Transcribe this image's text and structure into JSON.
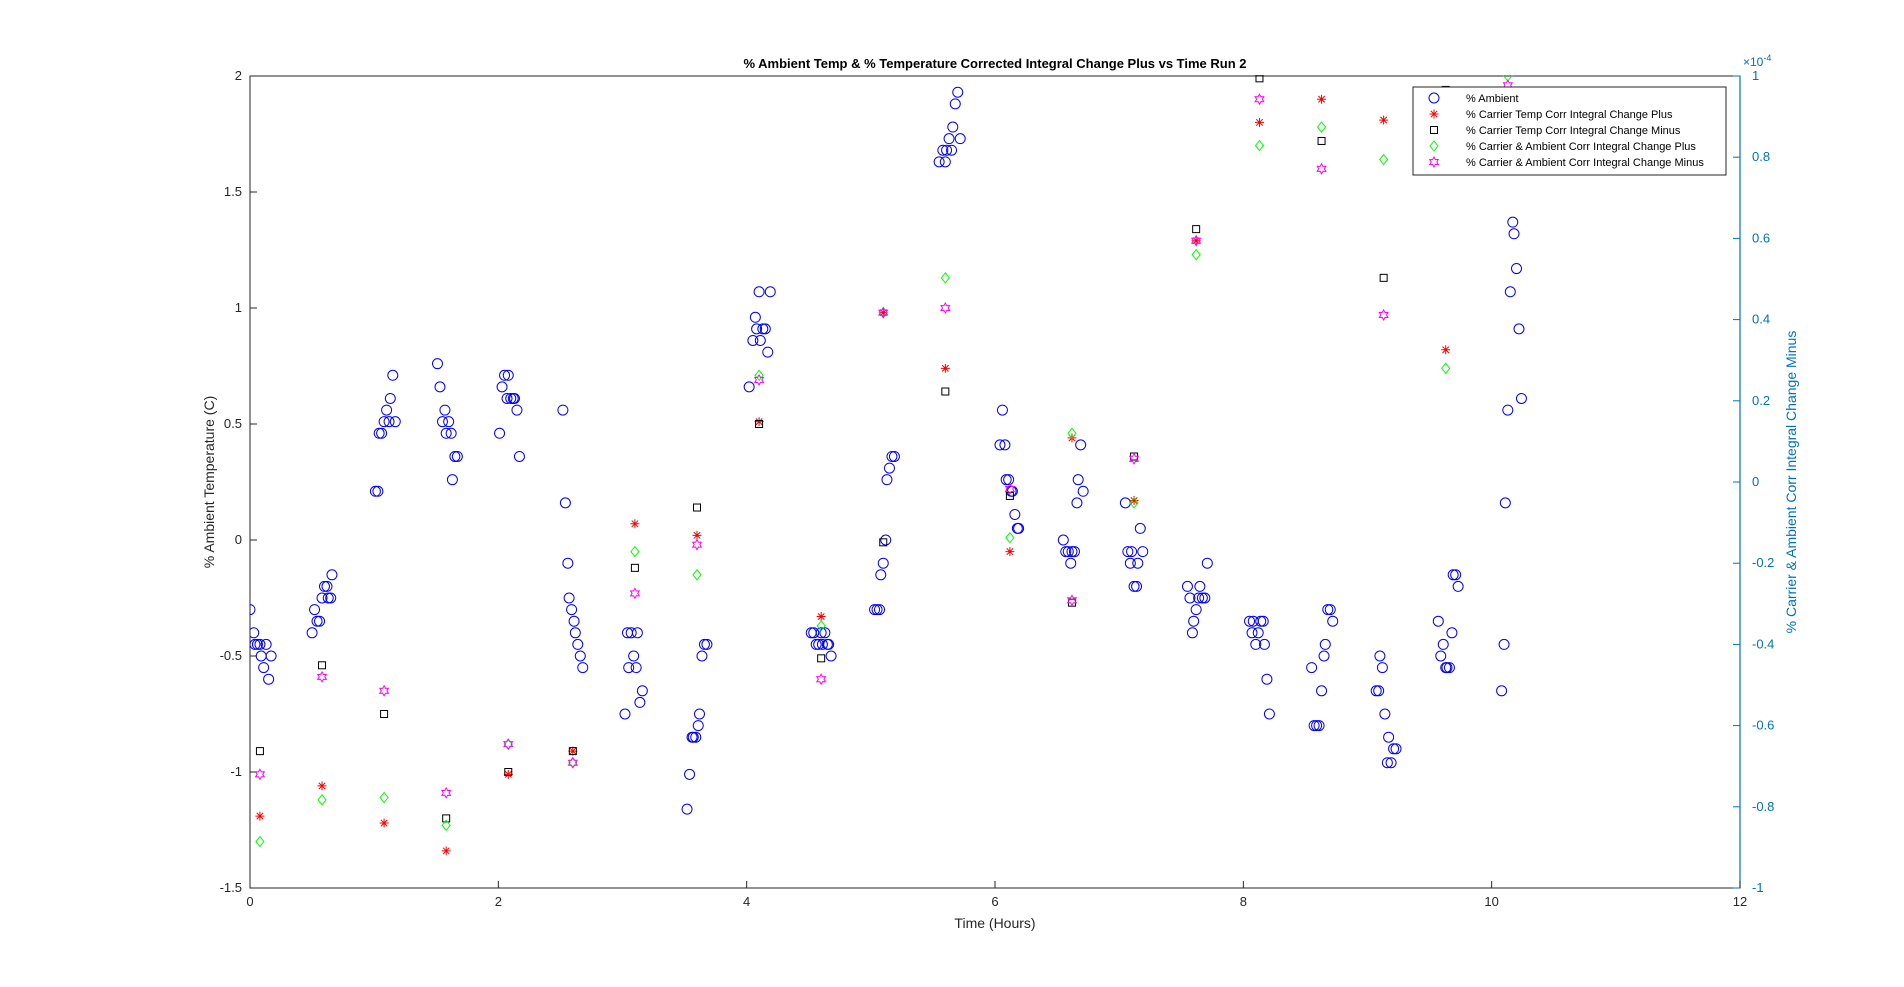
{
  "chart_data": {
    "type": "scatter",
    "title": "% Ambient Temp & % Temperature Corrected Integral Change Plus vs Time Run 2",
    "xlabel": "Time (Hours)",
    "ylabel": "% Ambient Temperature (C)",
    "y2label": "% Carrier & Ambient Corr Integral Change Minus",
    "y2_exponent_label": "×10",
    "y2_exponent_power": "-4",
    "xlim": [
      0,
      12
    ],
    "ylim": [
      -1.5,
      2
    ],
    "y2lim": [
      -1,
      1
    ],
    "xticks": [
      0,
      2,
      4,
      6,
      8,
      10,
      12
    ],
    "yticks": [
      -1.5,
      -1,
      -0.5,
      0,
      0.5,
      1,
      1.5,
      2
    ],
    "y2ticks": [
      -1,
      -0.8,
      -0.6,
      -0.4,
      -0.2,
      0,
      0.2,
      0.4,
      0.6,
      0.8,
      1
    ],
    "xtick_labels": [
      "0",
      "2",
      "4",
      "6",
      "8",
      "10",
      "12"
    ],
    "ytick_labels": [
      "-1.5",
      "-1",
      "-0.5",
      "0",
      "0.5",
      "1",
      "1.5",
      "2"
    ],
    "y2tick_labels": [
      "-1",
      "-0.8",
      "-0.6",
      "-0.4",
      "-0.2",
      "0",
      "0.2",
      "0.4",
      "0.6",
      "0.8",
      "1"
    ],
    "grid": false,
    "legend_position": "top-right",
    "colors": {
      "ambient": "#0000ff",
      "cplus": "#ff0000",
      "cminus": "#000000",
      "aplus": "#00ff00",
      "aminus": "#ff00ff",
      "right_axis": "#0072bd"
    },
    "series": [
      {
        "name": "% Ambient",
        "marker": "circle",
        "color": "#0000ff",
        "axis": "left",
        "points": [
          [
            0.0,
            -0.3
          ],
          [
            0.03,
            -0.4
          ],
          [
            0.04,
            -0.45
          ],
          [
            0.06,
            -0.45
          ],
          [
            0.08,
            -0.45
          ],
          [
            0.09,
            -0.5
          ],
          [
            0.11,
            -0.55
          ],
          [
            0.13,
            -0.45
          ],
          [
            0.15,
            -0.6
          ],
          [
            0.17,
            -0.5
          ],
          [
            0.5,
            -0.4
          ],
          [
            0.52,
            -0.3
          ],
          [
            0.54,
            -0.35
          ],
          [
            0.56,
            -0.35
          ],
          [
            0.58,
            -0.25
          ],
          [
            0.6,
            -0.2
          ],
          [
            0.62,
            -0.2
          ],
          [
            0.63,
            -0.25
          ],
          [
            0.65,
            -0.25
          ],
          [
            0.66,
            -0.15
          ],
          [
            1.01,
            0.21
          ],
          [
            1.03,
            0.21
          ],
          [
            1.04,
            0.46
          ],
          [
            1.06,
            0.46
          ],
          [
            1.08,
            0.51
          ],
          [
            1.1,
            0.56
          ],
          [
            1.12,
            0.51
          ],
          [
            1.13,
            0.61
          ],
          [
            1.15,
            0.71
          ],
          [
            1.17,
            0.51
          ],
          [
            1.51,
            0.76
          ],
          [
            1.53,
            0.66
          ],
          [
            1.55,
            0.51
          ],
          [
            1.57,
            0.56
          ],
          [
            1.58,
            0.46
          ],
          [
            1.6,
            0.51
          ],
          [
            1.62,
            0.46
          ],
          [
            1.63,
            0.26
          ],
          [
            1.65,
            0.36
          ],
          [
            1.67,
            0.36
          ],
          [
            2.01,
            0.46
          ],
          [
            2.03,
            0.66
          ],
          [
            2.05,
            0.71
          ],
          [
            2.07,
            0.61
          ],
          [
            2.08,
            0.71
          ],
          [
            2.1,
            0.61
          ],
          [
            2.12,
            0.61
          ],
          [
            2.13,
            0.61
          ],
          [
            2.15,
            0.56
          ],
          [
            2.17,
            0.36
          ],
          [
            2.52,
            0.56
          ],
          [
            2.54,
            0.16
          ],
          [
            2.56,
            -0.1
          ],
          [
            2.57,
            -0.25
          ],
          [
            2.59,
            -0.3
          ],
          [
            2.61,
            -0.35
          ],
          [
            2.62,
            -0.4
          ],
          [
            2.64,
            -0.45
          ],
          [
            2.66,
            -0.5
          ],
          [
            2.68,
            -0.55
          ],
          [
            3.02,
            -0.75
          ],
          [
            3.04,
            -0.4
          ],
          [
            3.05,
            -0.55
          ],
          [
            3.07,
            -0.4
          ],
          [
            3.09,
            -0.5
          ],
          [
            3.11,
            -0.55
          ],
          [
            3.12,
            -0.4
          ],
          [
            3.14,
            -0.7
          ],
          [
            3.16,
            -0.65
          ],
          [
            3.52,
            -1.16
          ],
          [
            3.54,
            -1.01
          ],
          [
            3.56,
            -0.85
          ],
          [
            3.57,
            -0.85
          ],
          [
            3.59,
            -0.85
          ],
          [
            3.61,
            -0.8
          ],
          [
            3.62,
            -0.75
          ],
          [
            3.64,
            -0.5
          ],
          [
            3.66,
            -0.45
          ],
          [
            3.68,
            -0.45
          ],
          [
            4.02,
            0.66
          ],
          [
            4.05,
            0.86
          ],
          [
            4.07,
            0.96
          ],
          [
            4.08,
            0.91
          ],
          [
            4.1,
            1.07
          ],
          [
            4.11,
            0.86
          ],
          [
            4.13,
            0.91
          ],
          [
            4.15,
            0.91
          ],
          [
            4.17,
            0.81
          ],
          [
            4.19,
            1.07
          ],
          [
            4.52,
            -0.4
          ],
          [
            4.54,
            -0.4
          ],
          [
            4.56,
            -0.45
          ],
          [
            4.58,
            -0.45
          ],
          [
            4.6,
            -0.4
          ],
          [
            4.61,
            -0.45
          ],
          [
            4.63,
            -0.4
          ],
          [
            4.65,
            -0.45
          ],
          [
            4.66,
            -0.45
          ],
          [
            4.68,
            -0.5
          ],
          [
            5.03,
            -0.3
          ],
          [
            5.05,
            -0.3
          ],
          [
            5.07,
            -0.3
          ],
          [
            5.08,
            -0.15
          ],
          [
            5.1,
            -0.1
          ],
          [
            5.12,
            0.0
          ],
          [
            5.13,
            0.26
          ],
          [
            5.15,
            0.31
          ],
          [
            5.17,
            0.36
          ],
          [
            5.19,
            0.36
          ],
          [
            5.55,
            1.63
          ],
          [
            5.58,
            1.68
          ],
          [
            5.6,
            1.63
          ],
          [
            5.61,
            1.68
          ],
          [
            5.63,
            1.73
          ],
          [
            5.65,
            1.68
          ],
          [
            5.66,
            1.78
          ],
          [
            5.68,
            1.88
          ],
          [
            5.7,
            1.93
          ],
          [
            5.72,
            1.73
          ],
          [
            6.04,
            0.41
          ],
          [
            6.06,
            0.56
          ],
          [
            6.08,
            0.41
          ],
          [
            6.09,
            0.26
          ],
          [
            6.11,
            0.26
          ],
          [
            6.13,
            0.21
          ],
          [
            6.14,
            0.21
          ],
          [
            6.16,
            0.11
          ],
          [
            6.18,
            0.05
          ],
          [
            6.19,
            0.05
          ],
          [
            6.55,
            0.0
          ],
          [
            6.57,
            -0.05
          ],
          [
            6.59,
            -0.05
          ],
          [
            6.61,
            -0.1
          ],
          [
            6.62,
            -0.05
          ],
          [
            6.64,
            -0.05
          ],
          [
            6.66,
            0.16
          ],
          [
            6.67,
            0.26
          ],
          [
            6.69,
            0.41
          ],
          [
            6.71,
            0.21
          ],
          [
            7.05,
            0.16
          ],
          [
            7.07,
            -0.05
          ],
          [
            7.09,
            -0.1
          ],
          [
            7.1,
            -0.05
          ],
          [
            7.12,
            -0.2
          ],
          [
            7.14,
            -0.2
          ],
          [
            7.15,
            -0.1
          ],
          [
            7.17,
            0.05
          ],
          [
            7.19,
            -0.05
          ],
          [
            7.55,
            -0.2
          ],
          [
            7.57,
            -0.25
          ],
          [
            7.59,
            -0.4
          ],
          [
            7.6,
            -0.35
          ],
          [
            7.62,
            -0.3
          ],
          [
            7.64,
            -0.25
          ],
          [
            7.65,
            -0.2
          ],
          [
            7.67,
            -0.25
          ],
          [
            7.69,
            -0.25
          ],
          [
            7.71,
            -0.1
          ],
          [
            8.05,
            -0.35
          ],
          [
            8.07,
            -0.4
          ],
          [
            8.08,
            -0.35
          ],
          [
            8.1,
            -0.45
          ],
          [
            8.12,
            -0.4
          ],
          [
            8.14,
            -0.35
          ],
          [
            8.16,
            -0.35
          ],
          [
            8.17,
            -0.45
          ],
          [
            8.19,
            -0.6
          ],
          [
            8.21,
            -0.75
          ],
          [
            8.55,
            -0.55
          ],
          [
            8.57,
            -0.8
          ],
          [
            8.59,
            -0.8
          ],
          [
            8.61,
            -0.8
          ],
          [
            8.63,
            -0.65
          ],
          [
            8.65,
            -0.5
          ],
          [
            8.66,
            -0.45
          ],
          [
            8.68,
            -0.3
          ],
          [
            8.7,
            -0.3
          ],
          [
            8.72,
            -0.35
          ],
          [
            9.07,
            -0.65
          ],
          [
            9.09,
            -0.65
          ],
          [
            9.1,
            -0.5
          ],
          [
            9.12,
            -0.55
          ],
          [
            9.14,
            -0.75
          ],
          [
            9.16,
            -0.96
          ],
          [
            9.17,
            -0.85
          ],
          [
            9.19,
            -0.96
          ],
          [
            9.21,
            -0.9
          ],
          [
            9.23,
            -0.9
          ],
          [
            9.57,
            -0.35
          ],
          [
            9.59,
            -0.5
          ],
          [
            9.61,
            -0.45
          ],
          [
            9.63,
            -0.55
          ],
          [
            9.64,
            -0.55
          ],
          [
            9.66,
            -0.55
          ],
          [
            9.68,
            -0.4
          ],
          [
            9.69,
            -0.15
          ],
          [
            9.71,
            -0.15
          ],
          [
            9.73,
            -0.2
          ],
          [
            10.08,
            -0.65
          ],
          [
            10.1,
            -0.45
          ],
          [
            10.11,
            0.16
          ],
          [
            10.13,
            0.56
          ],
          [
            10.15,
            1.07
          ],
          [
            10.17,
            1.37
          ],
          [
            10.18,
            1.32
          ],
          [
            10.2,
            1.17
          ],
          [
            10.22,
            0.91
          ],
          [
            10.24,
            0.61
          ]
        ]
      },
      {
        "name": "% Carrier Temp Corr Integral Change Plus",
        "marker": "asterisk",
        "color": "#ff0000",
        "axis": "left",
        "points": [
          [
            0.08,
            -1.19
          ],
          [
            0.58,
            -1.06
          ],
          [
            1.08,
            -1.22
          ],
          [
            1.58,
            -1.34
          ],
          [
            2.08,
            -1.01
          ],
          [
            2.6,
            -0.91
          ],
          [
            3.1,
            0.07
          ],
          [
            3.6,
            0.02
          ],
          [
            4.1,
            0.51
          ],
          [
            4.6,
            -0.33
          ],
          [
            5.1,
            0.98
          ],
          [
            5.6,
            0.74
          ],
          [
            6.12,
            -0.05
          ],
          [
            6.62,
            0.44
          ],
          [
            7.12,
            0.17
          ],
          [
            7.62,
            1.29
          ],
          [
            8.13,
            1.8
          ],
          [
            8.63,
            1.9
          ],
          [
            9.13,
            1.81
          ],
          [
            9.63,
            0.82
          ],
          [
            10.13,
            2.09
          ]
        ]
      },
      {
        "name": "% Carrier Temp Corr Integral Change Minus",
        "marker": "square",
        "color": "#000000",
        "axis": "left",
        "points": [
          [
            0.08,
            -0.91
          ],
          [
            0.58,
            -0.54
          ],
          [
            1.08,
            -0.75
          ],
          [
            1.58,
            -1.2
          ],
          [
            2.08,
            -1.0
          ],
          [
            2.6,
            -0.91
          ],
          [
            3.1,
            -0.12
          ],
          [
            3.6,
            0.14
          ],
          [
            4.1,
            0.5
          ],
          [
            4.6,
            -0.51
          ],
          [
            5.1,
            -0.01
          ],
          [
            5.6,
            0.64
          ],
          [
            6.12,
            0.19
          ],
          [
            6.62,
            -0.27
          ],
          [
            7.12,
            0.36
          ],
          [
            7.62,
            1.34
          ],
          [
            8.13,
            1.99
          ],
          [
            8.63,
            1.72
          ],
          [
            9.13,
            1.13
          ],
          [
            9.63,
            1.94
          ],
          [
            10.13,
            2.16
          ]
        ]
      },
      {
        "name": "% Carrier & Ambient Corr Integral Change Plus",
        "marker": "diamond",
        "color": "#00ff00",
        "axis": "left",
        "points": [
          [
            0.08,
            -1.3
          ],
          [
            0.58,
            -1.12
          ],
          [
            1.08,
            -1.11
          ],
          [
            1.58,
            -1.23
          ],
          [
            2.08,
            -0.88
          ],
          [
            2.6,
            -0.96
          ],
          [
            3.1,
            -0.05
          ],
          [
            3.6,
            -0.15
          ],
          [
            4.1,
            0.71
          ],
          [
            4.6,
            -0.37
          ],
          [
            5.1,
            0.98
          ],
          [
            5.6,
            1.13
          ],
          [
            6.12,
            0.01
          ],
          [
            6.62,
            0.46
          ],
          [
            7.12,
            0.16
          ],
          [
            7.62,
            1.23
          ],
          [
            8.13,
            1.7
          ],
          [
            8.63,
            1.78
          ],
          [
            9.13,
            1.64
          ],
          [
            9.63,
            0.74
          ],
          [
            10.13,
            2.0
          ]
        ]
      },
      {
        "name": "% Carrier & Ambient Corr Integral Change Minus",
        "marker": "hexagram",
        "color": "#ff00ff",
        "axis": "left",
        "points": [
          [
            0.08,
            -1.01
          ],
          [
            0.58,
            -0.59
          ],
          [
            1.08,
            -0.65
          ],
          [
            1.58,
            -1.09
          ],
          [
            2.08,
            -0.88
          ],
          [
            2.6,
            -0.96
          ],
          [
            3.1,
            -0.23
          ],
          [
            3.6,
            -0.02
          ],
          [
            4.1,
            0.69
          ],
          [
            4.6,
            -0.6
          ],
          [
            5.1,
            0.98
          ],
          [
            5.6,
            1.0
          ],
          [
            6.12,
            0.22
          ],
          [
            6.62,
            -0.26
          ],
          [
            7.12,
            0.35
          ],
          [
            7.62,
            1.29
          ],
          [
            8.13,
            1.9
          ],
          [
            8.63,
            1.6
          ],
          [
            9.13,
            0.97
          ],
          [
            9.63,
            1.75
          ],
          [
            10.13,
            1.96
          ]
        ]
      }
    ]
  }
}
